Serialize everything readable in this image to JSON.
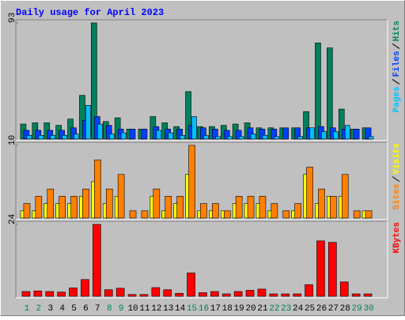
{
  "chart_data": [
    {
      "type": "bar",
      "title": "Daily usage for April 2023",
      "ylim": [
        0,
        93
      ],
      "yticks": [
        93
      ],
      "series": [
        {
          "name": "Hits",
          "color": "#00805c",
          "values": [
            12,
            13,
            13,
            11,
            16,
            35,
            93,
            14,
            17,
            8,
            8,
            18,
            13,
            10,
            38,
            10,
            10,
            11,
            12,
            13,
            9,
            9,
            9,
            9,
            22,
            77,
            73,
            24,
            8,
            9
          ]
        },
        {
          "name": "Files",
          "color": "#0040ff",
          "values": [
            7,
            7,
            7,
            7,
            9,
            15,
            18,
            11,
            8,
            8,
            8,
            10,
            8,
            8,
            11,
            9,
            8,
            7,
            7,
            9,
            8,
            8,
            9,
            9,
            9,
            10,
            9,
            8,
            8,
            9
          ]
        },
        {
          "name": "Pages",
          "color": "#00c0ff",
          "values": [
            3,
            3,
            3,
            3,
            4,
            27,
            12,
            4,
            5,
            0,
            0,
            7,
            5,
            3,
            18,
            3,
            2,
            2,
            2,
            4,
            3,
            2,
            0,
            2,
            9,
            6,
            6,
            11,
            0,
            2
          ]
        }
      ]
    },
    {
      "type": "bar",
      "ylim": [
        0,
        10
      ],
      "yticks": [
        10
      ],
      "series": [
        {
          "name": "Visits",
          "color": "#ffff00",
          "values": [
            1,
            1,
            2,
            2,
            2,
            3,
            5,
            2,
            3,
            0,
            0,
            3,
            1,
            2,
            6,
            1,
            1,
            1,
            2,
            2,
            2,
            1,
            0,
            1,
            6,
            2,
            3,
            3,
            0,
            1
          ]
        },
        {
          "name": "Sites",
          "color": "#ff8000",
          "values": [
            2,
            3,
            4,
            3,
            3,
            4,
            8,
            4,
            6,
            1,
            1,
            4,
            3,
            3,
            10,
            2,
            2,
            1,
            3,
            3,
            3,
            2,
            1,
            2,
            7,
            4,
            3,
            6,
            1,
            1
          ]
        }
      ]
    },
    {
      "type": "bar",
      "ylim": [
        0,
        24
      ],
      "yticks": [
        24
      ],
      "categories": [
        "1",
        "2",
        "3",
        "4",
        "5",
        "6",
        "7",
        "8",
        "9",
        "10",
        "11",
        "12",
        "13",
        "14",
        "15",
        "16",
        "17",
        "18",
        "19",
        "20",
        "21",
        "22",
        "23",
        "24",
        "25",
        "26",
        "27",
        "28",
        "29",
        "30"
      ],
      "label_colors": [
        "#00805c",
        "#00805c",
        "#000000",
        "#000000",
        "#000000",
        "#000000",
        "#000000",
        "#00805c",
        "#00805c",
        "#000000",
        "#000000",
        "#000000",
        "#000000",
        "#000000",
        "#00805c",
        "#00805c",
        "#000000",
        "#000000",
        "#000000",
        "#000000",
        "#000000",
        "#00805c",
        "#00805c",
        "#000000",
        "#000000",
        "#000000",
        "#000000",
        "#000000",
        "#00805c",
        "#00805c"
      ],
      "series": [
        {
          "name": "KBytes",
          "color": "#ff0000",
          "values": [
            1.6,
            1.8,
            1.6,
            1.4,
            2.8,
            5.6,
            24,
            2.2,
            2.7,
            0.6,
            0.6,
            2.9,
            2.2,
            1.0,
            7.8,
            1.2,
            1.6,
            0.8,
            1.6,
            2.0,
            2.4,
            0.8,
            0.8,
            0.8,
            3.9,
            18.5,
            18,
            4.8,
            0.8,
            0.8
          ]
        }
      ]
    }
  ]
}
